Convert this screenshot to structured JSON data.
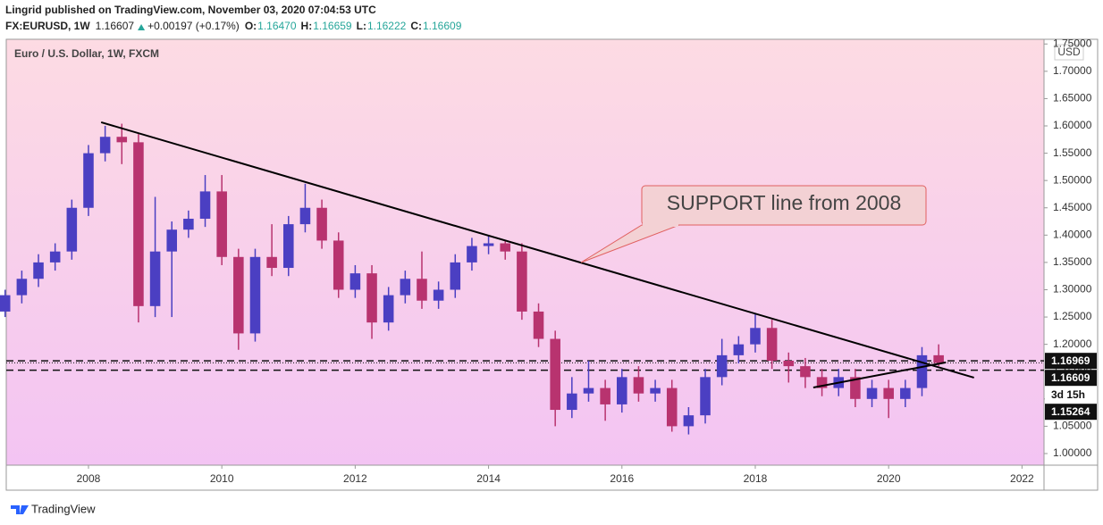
{
  "chart_data": {
    "type": "candlestick",
    "header": "Lingrid published on TradingView.com, November 03, 2020 07:04:53 UTC",
    "symbol": "FX:EURUSD, 1W",
    "last": "1.16607",
    "change": "+0.00197 (+0.17%)",
    "ohlc": [
      {
        "label": "O:",
        "value": "1.16470"
      },
      {
        "label": "H:",
        "value": "1.16659"
      },
      {
        "label": "L:",
        "value": "1.16222"
      },
      {
        "label": "C:",
        "value": "1.16609"
      }
    ],
    "title": "Euro / U.S. Dollar, 1W, FXCM",
    "currency": "USD",
    "annotation": "SUPPORT line from 2008",
    "footer": "TradingView",
    "up_color": "#4b3fc2",
    "down_color": "#b8336f",
    "x": [
      2006.75,
      2007,
      2007.25,
      2007.5,
      2007.75,
      2008,
      2008.25,
      2008.5,
      2008.75,
      2009,
      2009.25,
      2009.5,
      2009.75,
      2010,
      2010.25,
      2010.5,
      2010.75,
      2011,
      2011.25,
      2011.5,
      2011.75,
      2012,
      2012.25,
      2012.5,
      2012.75,
      2013,
      2013.25,
      2013.5,
      2013.75,
      2014,
      2014.25,
      2014.5,
      2014.75,
      2015,
      2015.25,
      2015.5,
      2015.75,
      2016,
      2016.25,
      2016.5,
      2016.75,
      2017,
      2017.25,
      2017.5,
      2017.75,
      2018,
      2018.25,
      2018.5,
      2018.75,
      2019,
      2019.25,
      2019.5,
      2019.75,
      2020,
      2020.25,
      2020.5,
      2020.75
    ],
    "open": [
      1.26,
      1.29,
      1.32,
      1.35,
      1.37,
      1.45,
      1.55,
      1.58,
      1.57,
      1.27,
      1.37,
      1.41,
      1.43,
      1.48,
      1.36,
      1.22,
      1.36,
      1.34,
      1.42,
      1.45,
      1.39,
      1.3,
      1.33,
      1.24,
      1.29,
      1.32,
      1.28,
      1.3,
      1.35,
      1.38,
      1.385,
      1.37,
      1.26,
      1.21,
      1.08,
      1.11,
      1.12,
      1.09,
      1.14,
      1.11,
      1.12,
      1.05,
      1.07,
      1.14,
      1.18,
      1.2,
      1.23,
      1.17,
      1.16,
      1.14,
      1.12,
      1.14,
      1.1,
      1.12,
      1.1,
      1.12,
      1.18
    ],
    "high": [
      1.3,
      1.335,
      1.365,
      1.385,
      1.465,
      1.565,
      1.6,
      1.604,
      1.585,
      1.47,
      1.425,
      1.445,
      1.51,
      1.51,
      1.375,
      1.375,
      1.42,
      1.435,
      1.494,
      1.465,
      1.405,
      1.345,
      1.345,
      1.305,
      1.335,
      1.37,
      1.315,
      1.365,
      1.395,
      1.4,
      1.39,
      1.385,
      1.275,
      1.225,
      1.14,
      1.17,
      1.135,
      1.155,
      1.16,
      1.135,
      1.135,
      1.085,
      1.155,
      1.21,
      1.215,
      1.255,
      1.245,
      1.185,
      1.175,
      1.155,
      1.155,
      1.155,
      1.135,
      1.135,
      1.135,
      1.195,
      1.2
    ],
    "low": [
      1.25,
      1.275,
      1.305,
      1.335,
      1.355,
      1.435,
      1.535,
      1.53,
      1.24,
      1.25,
      1.25,
      1.395,
      1.415,
      1.345,
      1.19,
      1.205,
      1.325,
      1.325,
      1.405,
      1.375,
      1.285,
      1.285,
      1.21,
      1.225,
      1.275,
      1.265,
      1.265,
      1.285,
      1.335,
      1.365,
      1.355,
      1.245,
      1.195,
      1.05,
      1.065,
      1.095,
      1.06,
      1.075,
      1.095,
      1.095,
      1.04,
      1.035,
      1.055,
      1.125,
      1.165,
      1.185,
      1.155,
      1.13,
      1.12,
      1.105,
      1.105,
      1.085,
      1.085,
      1.065,
      1.085,
      1.105,
      1.16
    ],
    "close": [
      1.29,
      1.32,
      1.35,
      1.37,
      1.45,
      1.55,
      1.58,
      1.57,
      1.27,
      1.37,
      1.41,
      1.43,
      1.48,
      1.36,
      1.22,
      1.36,
      1.34,
      1.42,
      1.45,
      1.39,
      1.3,
      1.33,
      1.24,
      1.29,
      1.32,
      1.28,
      1.3,
      1.35,
      1.38,
      1.385,
      1.37,
      1.26,
      1.21,
      1.08,
      1.11,
      1.12,
      1.09,
      1.14,
      1.11,
      1.12,
      1.05,
      1.07,
      1.14,
      1.18,
      1.2,
      1.23,
      1.17,
      1.16,
      1.14,
      1.12,
      1.14,
      1.1,
      1.12,
      1.1,
      1.12,
      1.18,
      1.166
    ],
    "xlim": [
      2006.767,
      2022.33
    ],
    "xticks": [
      2008,
      2010,
      2012,
      2014,
      2016,
      2018,
      2020,
      2022
    ],
    "ylim": [
      0.9787,
      1.7586
    ],
    "yticks": [
      {
        "value": 1.0,
        "label": "1.00000"
      },
      {
        "value": 1.05,
        "label": "1.05000"
      },
      {
        "value": 1.1,
        "label": "1.10000"
      },
      {
        "value": 1.15,
        "label": "1.15000"
      },
      {
        "value": 1.2,
        "label": "1.20000"
      },
      {
        "value": 1.25,
        "label": "1.25000"
      },
      {
        "value": 1.3,
        "label": "1.30000"
      },
      {
        "value": 1.35,
        "label": "1.35000"
      },
      {
        "value": 1.4,
        "label": "1.40000"
      },
      {
        "value": 1.45,
        "label": "1.45000"
      },
      {
        "value": 1.5,
        "label": "1.50000"
      },
      {
        "value": 1.55,
        "label": "1.55000"
      },
      {
        "value": 1.6,
        "label": "1.60000"
      },
      {
        "value": 1.65,
        "label": "1.65000"
      },
      {
        "value": 1.7,
        "label": "1.70000"
      },
      {
        "value": 1.75,
        "label": "1.75000"
      }
    ],
    "levels": [
      {
        "value": 1.16969,
        "label": "1.16969",
        "style": "dashed"
      },
      {
        "value": 1.16609,
        "label": "1.16609",
        "style": "dotted",
        "countdown": "3d 15h"
      },
      {
        "value": 1.15264,
        "label": "1.15264",
        "style": "dashed"
      }
    ],
    "trendlines": [
      {
        "x": [
          2008.19,
          2021.28
        ],
        "y": [
          1.6066,
          1.139
        ]
      },
      {
        "x": [
          2018.87,
          2020.86
        ],
        "y": [
          1.121,
          1.167
        ]
      }
    ]
  }
}
